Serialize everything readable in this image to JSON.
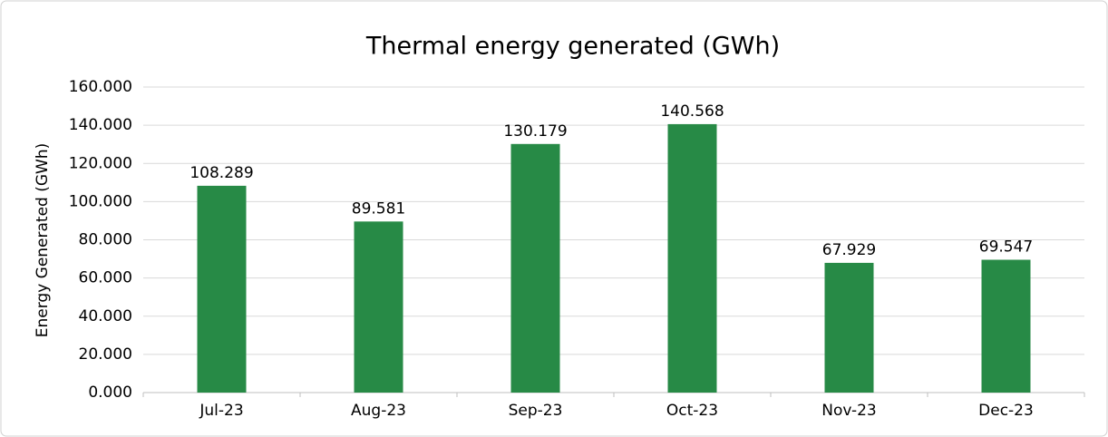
{
  "chart_data": {
    "type": "bar",
    "title": "Thermal energy generated (GWh)",
    "y_label": "Energy Generated (GWh)",
    "categories": [
      "Jul-23",
      "Aug-23",
      "Sep-23",
      "Oct-23",
      "Nov-23",
      "Dec-23"
    ],
    "values": [
      108.289,
      89.581,
      130.179,
      140.568,
      67.929,
      69.547
    ],
    "color": "#278a46",
    "ylim": [
      0,
      160
    ],
    "yticks": [
      {
        "value": 0,
        "label": "0.000"
      },
      {
        "value": 20,
        "label": "20.000"
      },
      {
        "value": 40,
        "label": "40.000"
      },
      {
        "value": 60,
        "label": "60.000"
      },
      {
        "value": 80,
        "label": "80.000"
      },
      {
        "value": 100,
        "label": "100.000"
      },
      {
        "value": 120,
        "label": "120.000"
      },
      {
        "value": 140,
        "label": "140.000"
      },
      {
        "value": 160,
        "label": "160.000"
      }
    ],
    "grid": true
  }
}
